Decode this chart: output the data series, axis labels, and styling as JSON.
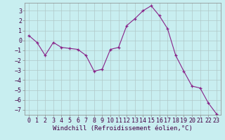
{
  "x": [
    0,
    1,
    2,
    3,
    4,
    5,
    6,
    7,
    8,
    9,
    10,
    11,
    12,
    13,
    14,
    15,
    16,
    17,
    18,
    19,
    20,
    21,
    22,
    23
  ],
  "y": [
    0.5,
    -0.2,
    -1.5,
    -0.2,
    -0.7,
    -0.8,
    -0.9,
    -1.5,
    -3.1,
    -2.9,
    -0.9,
    -0.7,
    1.5,
    2.2,
    3.0,
    3.5,
    2.5,
    1.2,
    -1.5,
    -3.1,
    -4.6,
    -4.8,
    -6.3,
    -7.4
  ],
  "line_color": "#882288",
  "marker": "+",
  "bg_color": "#c8eef0",
  "grid_color": "#b0c8c8",
  "xlabel": "Windchill (Refroidissement éolien,°C)",
  "xlabel_fontsize": 6.5,
  "tick_fontsize": 6.0,
  "ylim": [
    -7.5,
    3.8
  ],
  "xlim": [
    -0.5,
    23.5
  ],
  "yticks": [
    -7,
    -6,
    -5,
    -4,
    -3,
    -2,
    -1,
    0,
    1,
    2,
    3
  ],
  "xticks": [
    0,
    1,
    2,
    3,
    4,
    5,
    6,
    7,
    8,
    9,
    10,
    11,
    12,
    13,
    14,
    15,
    16,
    17,
    18,
    19,
    20,
    21,
    22,
    23
  ]
}
